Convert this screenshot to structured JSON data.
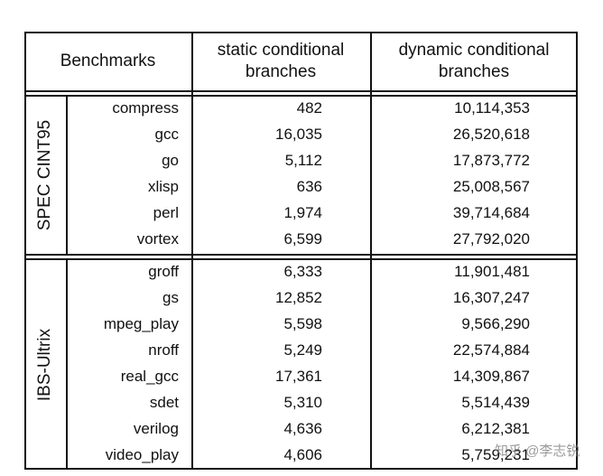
{
  "header": {
    "benchmarks": "Benchmarks",
    "static": "static conditional branches",
    "dynamic": "dynamic conditional branches"
  },
  "groups": [
    {
      "label": "SPEC CINT95",
      "rows": [
        [
          "compress",
          "482",
          "10,114,353"
        ],
        [
          "gcc",
          "16,035",
          "26,520,618"
        ],
        [
          "go",
          "5,112",
          "17,873,772"
        ],
        [
          "xlisp",
          "636",
          "25,008,567"
        ],
        [
          "perl",
          "1,974",
          "39,714,684"
        ],
        [
          "vortex",
          "6,599",
          "27,792,020"
        ]
      ]
    },
    {
      "label": "IBS-Ultrix",
      "rows": [
        [
          "groff",
          "6,333",
          "11,901,481"
        ],
        [
          "gs",
          "12,852",
          "16,307,247"
        ],
        [
          "mpeg_play",
          "5,598",
          "9,566,290"
        ],
        [
          "nroff",
          "5,249",
          "22,574,884"
        ],
        [
          "real_gcc",
          "17,361",
          "14,309,867"
        ],
        [
          "sdet",
          "5,310",
          "5,514,439"
        ],
        [
          "verilog",
          "4,636",
          "6,212,381"
        ],
        [
          "video_play",
          "4,606",
          "5,759,231"
        ]
      ]
    }
  ],
  "watermark": "知乎 @李志锐"
}
